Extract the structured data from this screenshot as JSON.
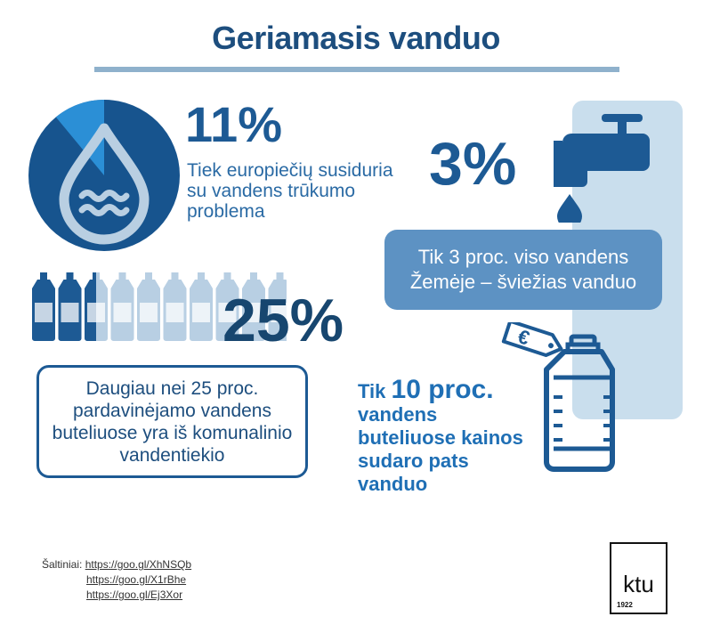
{
  "title": "Geriamasis vanduo",
  "colors": {
    "dark_blue": "#1d5a94",
    "mid_blue": "#2a6aa4",
    "light_blue": "#c9deed",
    "box_blue": "#5d92c3"
  },
  "stat_water_shortage": {
    "value": "11%",
    "fraction": 0.11,
    "description": "Tiek europiečių susiduria su vandens trūkumo problema",
    "icon": "water-drop-icon"
  },
  "stat_fresh_water": {
    "value": "3%",
    "description": "Tik 3 proc. viso vandens Žemėje – šviežias vanduo",
    "icon": "water-tap-icon"
  },
  "stat_tap_water": {
    "value": "25%",
    "bottles_total": 10,
    "bottles_highlighted": 2.5,
    "description": "Daugiau nei 25 proc. pardavinėjamo vandens buteliuose yra iš komunalinio vandentiekio",
    "icon": "water-bottle-icon"
  },
  "stat_price": {
    "prefix": "Tik",
    "value": "10 proc.",
    "description": "vandens buteliuose kainos sudaro pats vanduo",
    "tag_symbol": "€",
    "icon": "price-tag-bottle-icon"
  },
  "sources": {
    "label": "Šaltiniai:",
    "links": [
      "https://goo.gl/XhNSQb",
      "https://goo.gl/X1rBhe",
      "https://goo.gl/Ej3Xor"
    ]
  },
  "logo": {
    "text": "ktu",
    "year": "1922"
  }
}
